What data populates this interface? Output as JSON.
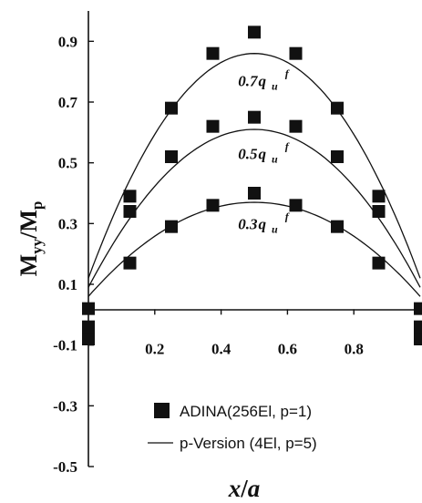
{
  "chart_data": {
    "type": "scatter",
    "xlabel_main": "x",
    "xlabel_slash": "/",
    "xlabel_sub": "a",
    "ylabel_main": "M",
    "ylabel_sub1": "yy",
    "ylabel_slash": "/M",
    "ylabel_sub2": "p",
    "xlim": [
      0,
      1
    ],
    "ylim": [
      -0.5,
      1.0
    ],
    "xticks": [
      0.2,
      0.4,
      0.6,
      0.8
    ],
    "xtick_labels": [
      "0.2",
      "0.4",
      "0.6",
      "0.8"
    ],
    "yticks": [
      0.9,
      0.7,
      0.5,
      0.3,
      0.1,
      -0.1,
      -0.3,
      -0.5
    ],
    "ytick_labels": [
      "0.9",
      "0.7",
      "0.5",
      "0.3",
      "0.1",
      "-0.1",
      "-0.3",
      "-0.5"
    ],
    "grid": false,
    "legend_position": "bottom-right",
    "legend": [
      {
        "label": "ADINA(256El, p=1)",
        "marker": "square"
      },
      {
        "label": "p-Version (4El, p=5)",
        "marker": "line"
      }
    ],
    "annotations": [
      {
        "coef": "0.7",
        "q": "q",
        "sub": "u",
        "sup": "f",
        "x": 0.5,
        "y": 0.77
      },
      {
        "coef": "0.5",
        "q": "q",
        "sub": "u",
        "sup": "f",
        "x": 0.5,
        "y": 0.53
      },
      {
        "coef": "0.3",
        "q": "q",
        "sub": "u",
        "sup": "f",
        "x": 0.5,
        "y": 0.3
      }
    ],
    "series": [
      {
        "load": "0.7q_u^f",
        "curve": {
          "x_start": 0.0,
          "x_end": 1.0,
          "y_end": 0.12,
          "y_peak": 0.86
        },
        "points": {
          "x": [
            0.0,
            0.125,
            0.25,
            0.375,
            0.5,
            0.625,
            0.75,
            0.875,
            1.0
          ],
          "y": [
            -0.08,
            0.39,
            0.68,
            0.86,
            0.93,
            0.86,
            0.68,
            0.39,
            -0.08
          ]
        }
      },
      {
        "load": "0.5q_u^f",
        "curve": {
          "x_start": 0.0,
          "x_end": 1.0,
          "y_end": 0.09,
          "y_peak": 0.61
        },
        "points": {
          "x": [
            0.0,
            0.125,
            0.25,
            0.375,
            0.5,
            0.625,
            0.75,
            0.875,
            1.0
          ],
          "y": [
            -0.04,
            0.34,
            0.52,
            0.62,
            0.65,
            0.62,
            0.52,
            0.34,
            -0.04
          ]
        }
      },
      {
        "load": "0.3q_u^f",
        "curve": {
          "x_start": 0.0,
          "x_end": 1.0,
          "y_end": 0.06,
          "y_peak": 0.37
        },
        "points": {
          "x": [
            0.0,
            0.125,
            0.25,
            0.375,
            0.5,
            0.625,
            0.75,
            0.875,
            1.0
          ],
          "y": [
            0.02,
            0.17,
            0.29,
            0.36,
            0.4,
            0.36,
            0.29,
            0.17,
            0.02
          ]
        }
      }
    ],
    "colors": {
      "marker": "#111111",
      "line": "#111111"
    }
  }
}
